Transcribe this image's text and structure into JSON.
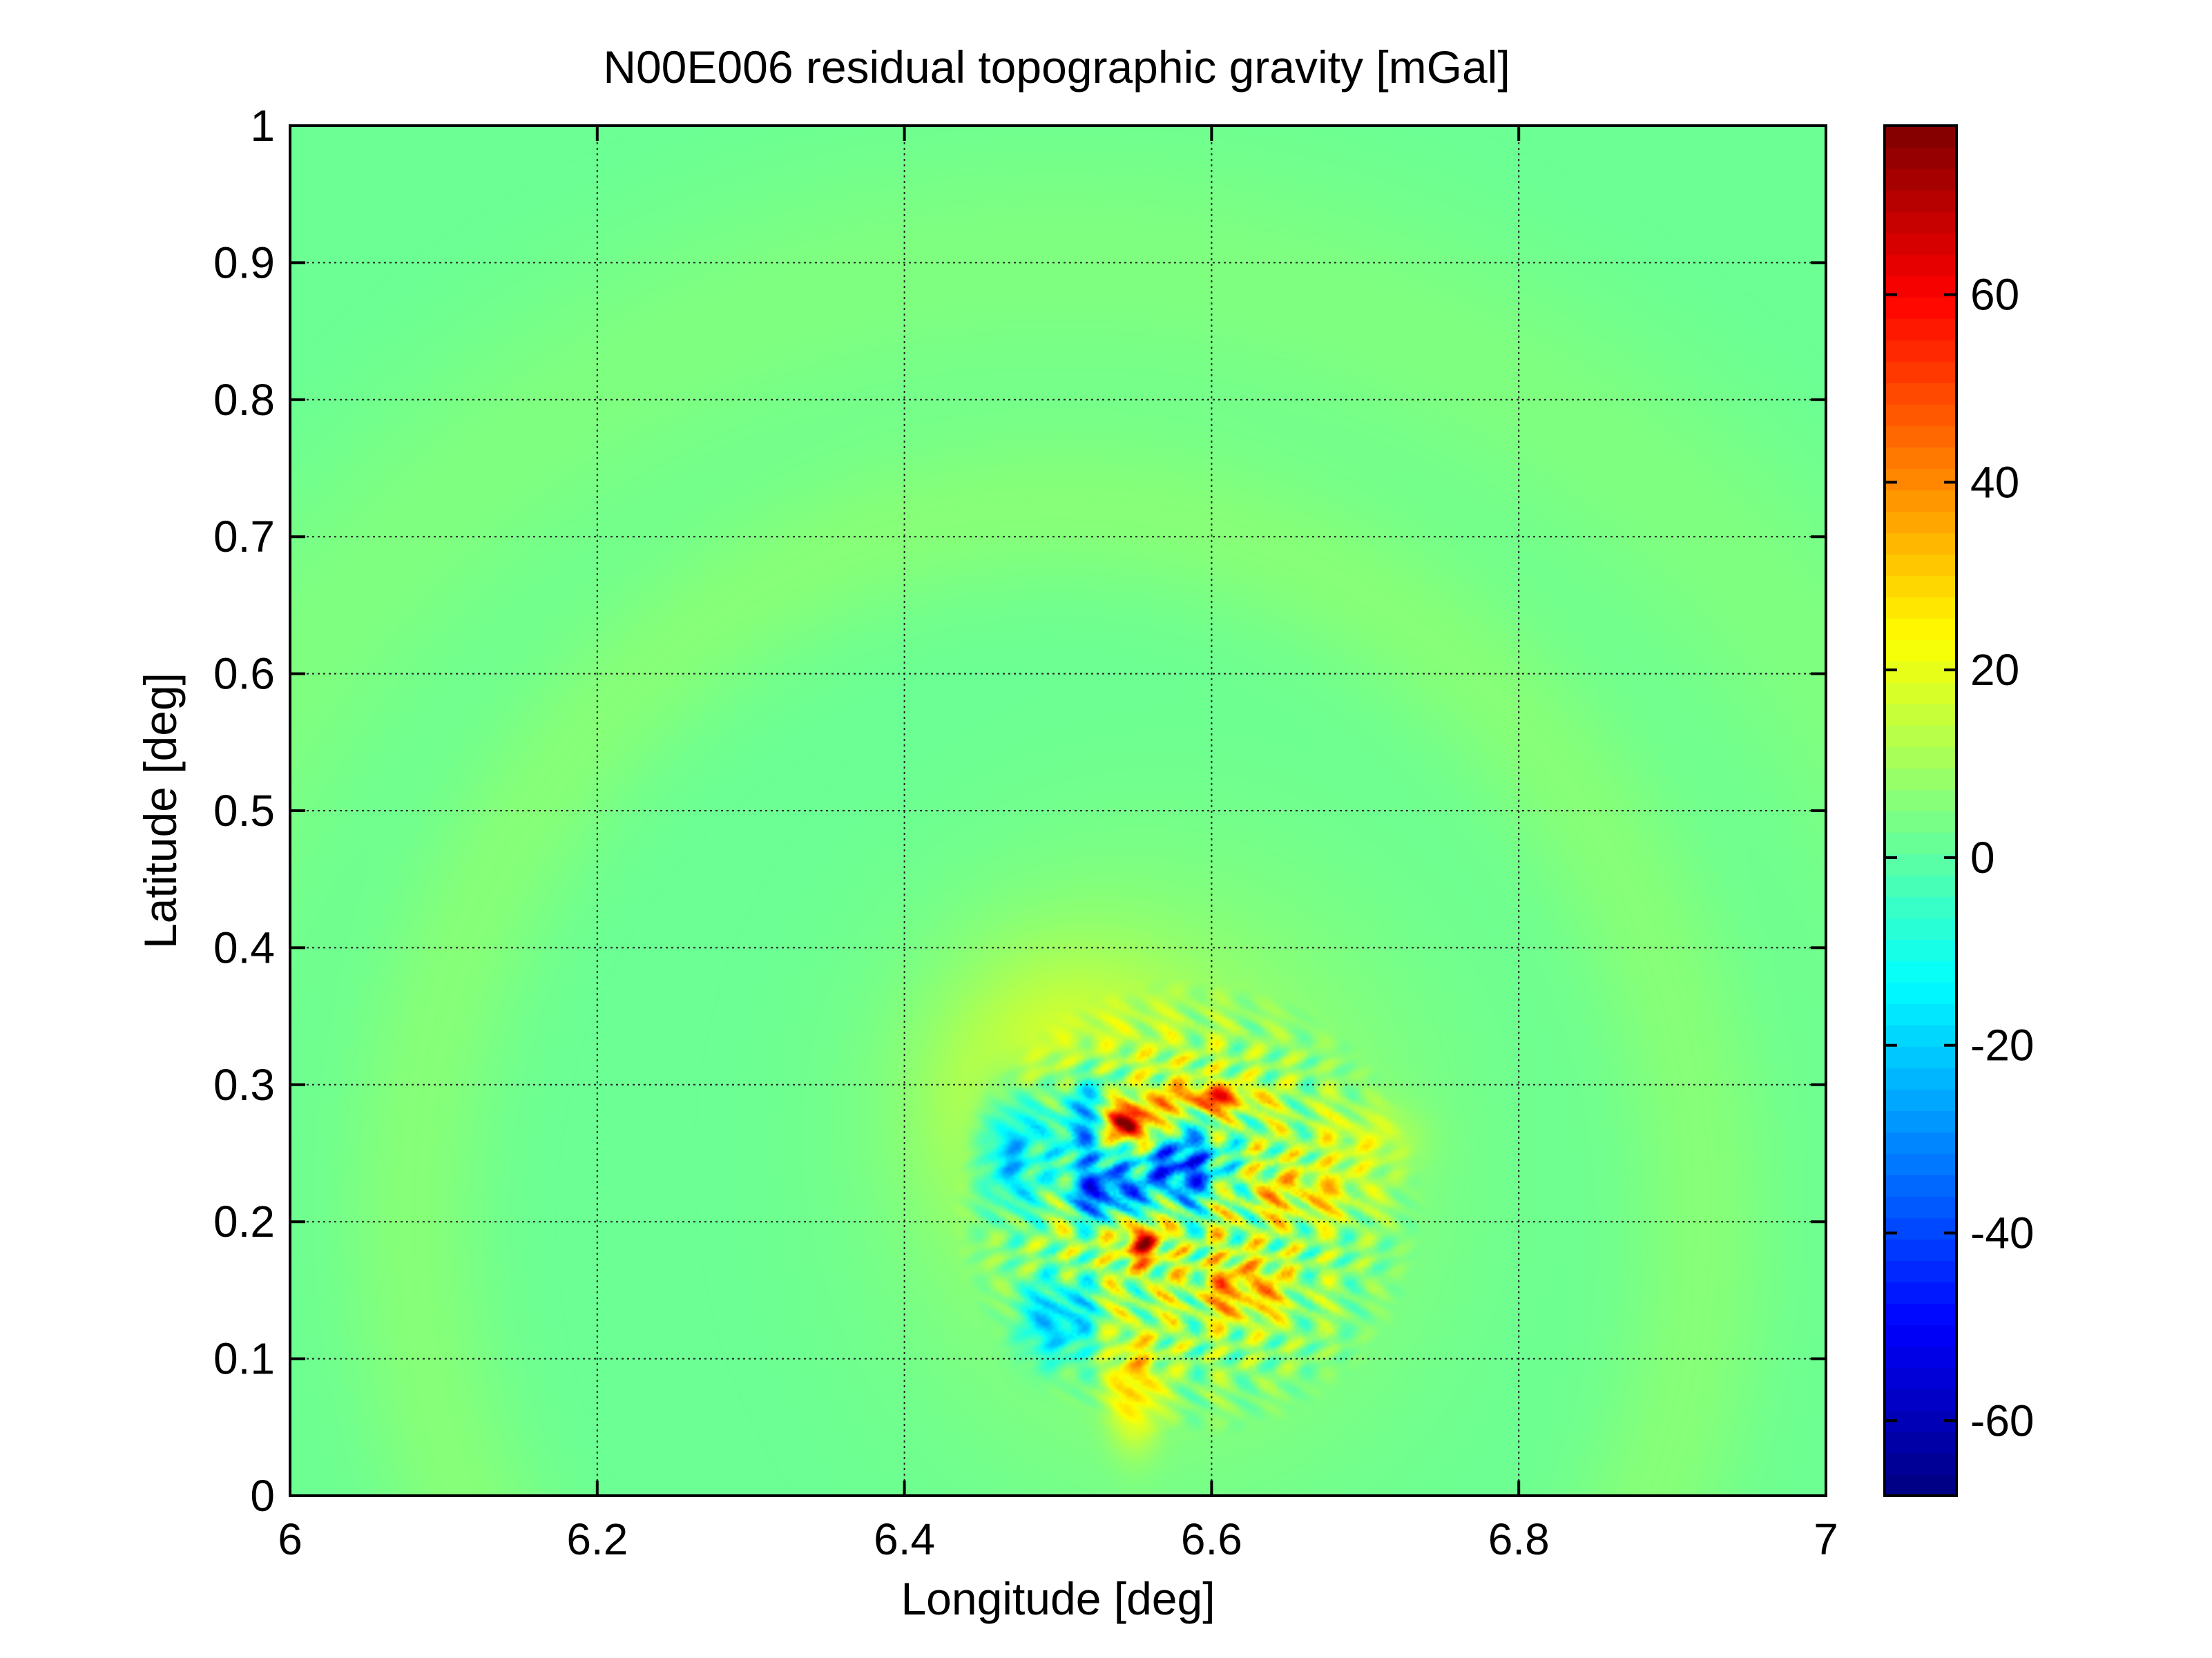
{
  "chart_data": {
    "type": "heatmap",
    "title": "N00E006 residual topographic gravity [mGal]",
    "xlabel": "Longitude [deg]",
    "ylabel": "Latitude [deg]",
    "xlim": [
      6,
      7
    ],
    "ylim": [
      0,
      1
    ],
    "x_ticks": [
      6,
      6.2,
      6.4,
      6.6,
      6.8,
      7
    ],
    "x_tick_labels": [
      "6",
      "6.2",
      "6.4",
      "6.6",
      "6.8",
      "7"
    ],
    "y_ticks": [
      0,
      0.1,
      0.2,
      0.3,
      0.4,
      0.5,
      0.6,
      0.7,
      0.8,
      0.9,
      1
    ],
    "y_tick_labels": [
      "0",
      "0.1",
      "0.2",
      "0.3",
      "0.4",
      "0.5",
      "0.6",
      "0.7",
      "0.8",
      "0.9",
      "1"
    ],
    "grid": true,
    "colormap": "jet",
    "colorbar": {
      "position": "right",
      "clim": [
        -68,
        78
      ],
      "ticks": [
        60,
        40,
        20,
        0,
        -20,
        -40,
        -60
      ],
      "tick_labels": [
        "60",
        "40",
        "20",
        "0",
        "-20",
        "-40",
        "-60"
      ]
    },
    "background_value": 2,
    "features": [
      {
        "kind": "halo",
        "lon": 6.57,
        "lat": 0.24,
        "rlon": 0.19,
        "rlat": 0.24,
        "value": 9
      },
      {
        "kind": "halo",
        "lon": 6.5,
        "lat": 0.3,
        "rlon": 0.1,
        "rlat": 0.12,
        "value": 12
      },
      {
        "kind": "ring",
        "lon": 6.5,
        "lat": 0.2,
        "rlon": 0.42,
        "rlat": 0.52,
        "value": 4
      },
      {
        "kind": "ring",
        "lon": 6.5,
        "lat": 0.15,
        "rlon": 0.62,
        "rlat": 0.75,
        "value": 3
      },
      {
        "kind": "patch",
        "lon": 6.52,
        "lat": 0.27,
        "rlon": 0.035,
        "rlat": 0.05,
        "value": -45
      },
      {
        "kind": "patch",
        "lon": 6.58,
        "lat": 0.24,
        "rlon": 0.035,
        "rlat": 0.035,
        "value": -55
      },
      {
        "kind": "patch",
        "lon": 6.53,
        "lat": 0.22,
        "rlon": 0.03,
        "rlat": 0.025,
        "value": -48
      },
      {
        "kind": "patch",
        "lon": 6.5,
        "lat": 0.13,
        "rlon": 0.03,
        "rlat": 0.04,
        "value": -30
      },
      {
        "kind": "patch",
        "lon": 6.47,
        "lat": 0.25,
        "rlon": 0.025,
        "rlat": 0.06,
        "value": -35
      },
      {
        "kind": "patch",
        "lon": 6.545,
        "lat": 0.272,
        "rlon": 0.022,
        "rlat": 0.02,
        "value": 75
      },
      {
        "kind": "patch",
        "lon": 6.555,
        "lat": 0.185,
        "rlon": 0.015,
        "rlat": 0.02,
        "value": 50
      },
      {
        "kind": "patch",
        "lon": 6.6,
        "lat": 0.29,
        "rlon": 0.035,
        "rlat": 0.012,
        "value": 40
      },
      {
        "kind": "patch",
        "lon": 6.55,
        "lat": 0.08,
        "rlon": 0.02,
        "rlat": 0.05,
        "value": 25
      },
      {
        "kind": "patch",
        "lon": 6.62,
        "lat": 0.15,
        "rlon": 0.035,
        "rlat": 0.03,
        "value": 28
      },
      {
        "kind": "patch",
        "lon": 6.66,
        "lat": 0.22,
        "rlon": 0.05,
        "rlat": 0.025,
        "value": 18
      },
      {
        "kind": "patch",
        "lon": 6.7,
        "lat": 0.26,
        "rlon": 0.04,
        "rlat": 0.03,
        "value": 12
      }
    ]
  }
}
